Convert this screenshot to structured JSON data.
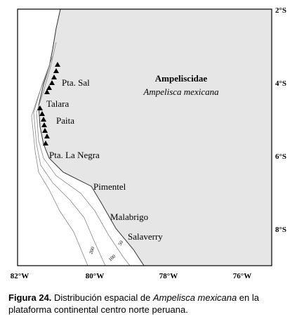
{
  "map": {
    "family": "Ampeliscidae",
    "species": "Ampelisca mexicana",
    "places": [
      "Pta. Sal",
      "Talara",
      "Paita",
      "Pta. La Negra",
      "Pimentel",
      "Malabrigo",
      "Salaverry"
    ],
    "lon_ticks": [
      "82°W",
      "80°W",
      "78°W",
      "76°W"
    ],
    "lat_ticks": [
      "2°S",
      "4°S",
      "6°S",
      "8°S"
    ],
    "contour_labels": [
      "200",
      "100",
      "50"
    ]
  },
  "caption": {
    "label": "Figura 24.",
    "text_before": " Distribución espacial de ",
    "italic": "Ampelisca mexicana",
    "text_after": " en la plataforma continental centro norte peruana."
  }
}
